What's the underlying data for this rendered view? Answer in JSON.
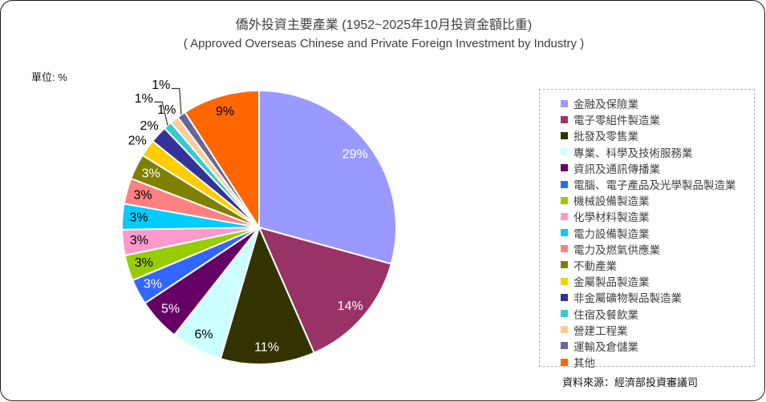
{
  "header": {
    "title": "僑外投資主要產業 (1952~2025年10月投資金額比重)",
    "subtitle": "( Approved Overseas Chinese and Private Foreign Investment by Industry )",
    "unit_label": "單位: %",
    "source": "資料來源：經濟部投資審議司"
  },
  "chart_data": {
    "type": "pie",
    "title": "僑外投資主要產業 (1952~2025年10月投資金額比重)",
    "subtitle": "( Approved Overseas Chinese and Private Foreign Investment by Industry )",
    "unit": "%",
    "legend_position": "right",
    "start_angle_deg": 0,
    "direction": "clockwise",
    "series": [
      {
        "name": "金融及保險業",
        "value": 29,
        "label": "29%",
        "color": "#9999FF",
        "label_placement": "inside",
        "label_color": "#FFFFFF"
      },
      {
        "name": "電子零組件製造業",
        "value": 14,
        "label": "14%",
        "color": "#993366",
        "label_placement": "inside",
        "label_color": "#FFFFFF"
      },
      {
        "name": "批發及零售業",
        "value": 11,
        "label": "11%",
        "color": "#333300",
        "label_placement": "inside",
        "label_color": "#FFFFFF"
      },
      {
        "name": "專業、科學及技術服務業",
        "value": 6,
        "label": "6%",
        "color": "#CCFFFF",
        "label_placement": "inside",
        "label_color": "#000000"
      },
      {
        "name": "資訊及通訊傳播業",
        "value": 5,
        "label": "5%",
        "color": "#660066",
        "label_placement": "inside",
        "label_color": "#FFFFFF"
      },
      {
        "name": "電腦、電子產品及光學製品製造業",
        "value": 3,
        "label": "3%",
        "color": "#3366FF",
        "label_placement": "inside",
        "label_color": "#FFFFFF"
      },
      {
        "name": "機械設備製造業",
        "value": 3,
        "label": "3%",
        "color": "#99CC00",
        "label_placement": "inside",
        "label_color": "#000000"
      },
      {
        "name": "化學材料製造業",
        "value": 3,
        "label": "3%",
        "color": "#FF99CC",
        "label_placement": "inside",
        "label_color": "#000000"
      },
      {
        "name": "電力設備製造業",
        "value": 3,
        "label": "3%",
        "color": "#00CCFF",
        "label_placement": "inside",
        "label_color": "#000000"
      },
      {
        "name": "電力及燃氣供應業",
        "value": 3,
        "label": "3%",
        "color": "#FF8080",
        "label_placement": "inside",
        "label_color": "#000000"
      },
      {
        "name": "不動產業",
        "value": 3,
        "label": "3%",
        "color": "#808000",
        "label_placement": "inside",
        "label_color": "#FFFFFF"
      },
      {
        "name": "金屬製品製造業",
        "value": 2,
        "label": "2%",
        "color": "#FFCC00",
        "label_placement": "outside",
        "label_color": "#000000"
      },
      {
        "name": "非金屬礦物製品製造業",
        "value": 2,
        "label": "2%",
        "color": "#333399",
        "label_placement": "outside",
        "label_color": "#000000"
      },
      {
        "name": "住宿及餐飲業",
        "value": 1,
        "label": "1%",
        "color": "#33CCCC",
        "label_placement": "leader",
        "label_color": "#000000"
      },
      {
        "name": "營建工程業",
        "value": 1,
        "label": "1%",
        "color": "#FFCC99",
        "label_placement": "outside",
        "label_color": "#000000"
      },
      {
        "name": "運輸及倉儲業",
        "value": 1,
        "label": "1%",
        "color": "#666699",
        "label_placement": "leader",
        "label_color": "#000000"
      },
      {
        "name": "其他",
        "value": 9,
        "label": "9%",
        "color": "#FF6600",
        "label_placement": "inside",
        "label_color": "#000000"
      }
    ]
  }
}
